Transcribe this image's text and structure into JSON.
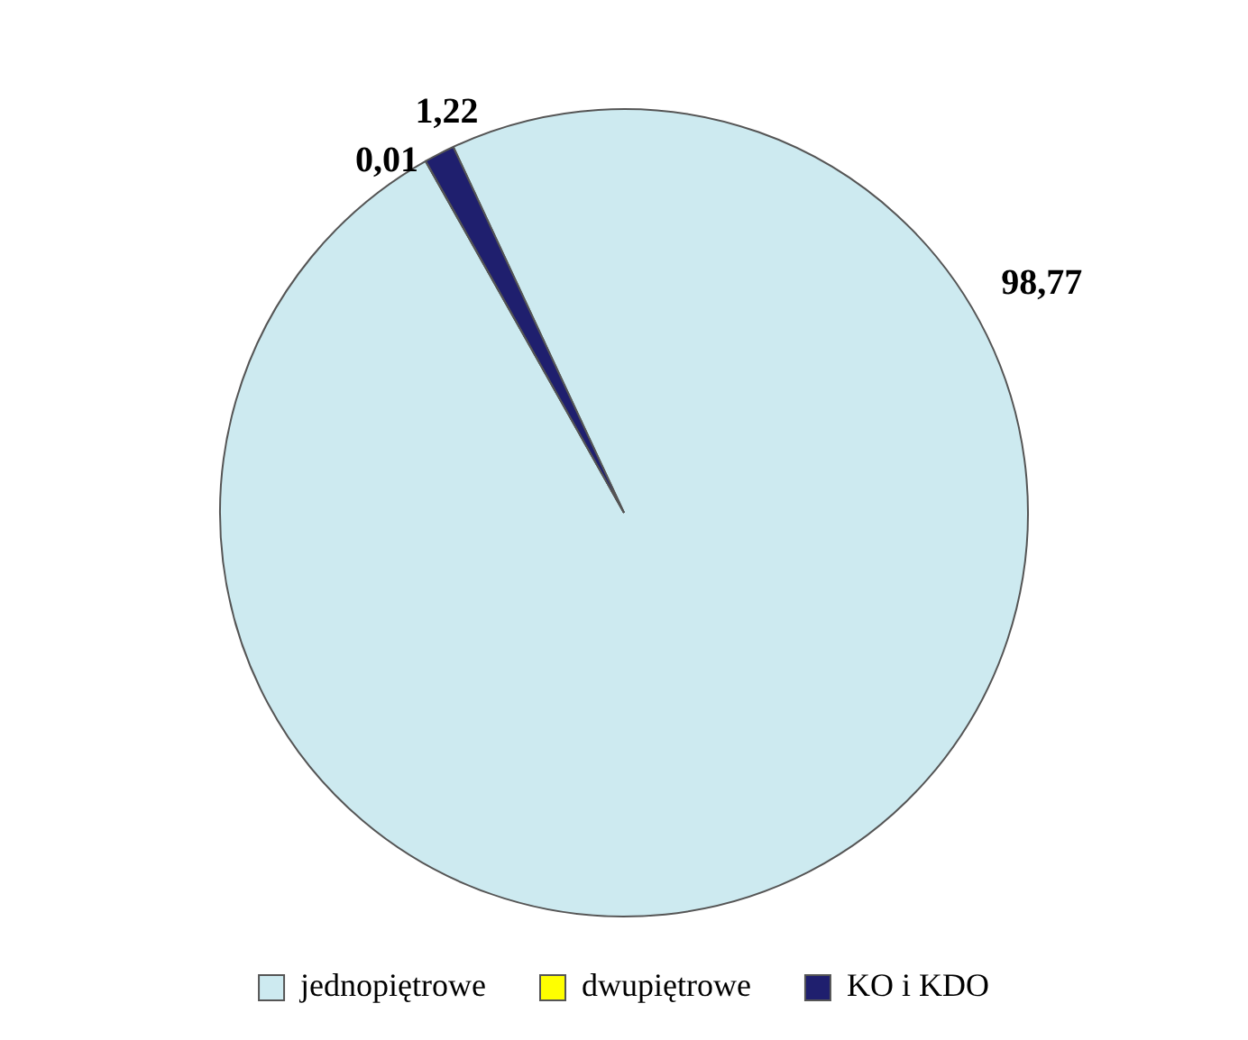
{
  "chart_data": {
    "type": "pie",
    "categories": [
      "jednopiętrowe",
      "dwupiętrowe",
      "KO i KDO"
    ],
    "values": [
      98.77,
      0.01,
      1.22
    ],
    "value_labels": [
      "98,77",
      "0,01",
      "1,22"
    ],
    "colors": [
      "#cdeaf0",
      "#ffff00",
      "#1f1f6e"
    ],
    "legend": "bottom"
  }
}
